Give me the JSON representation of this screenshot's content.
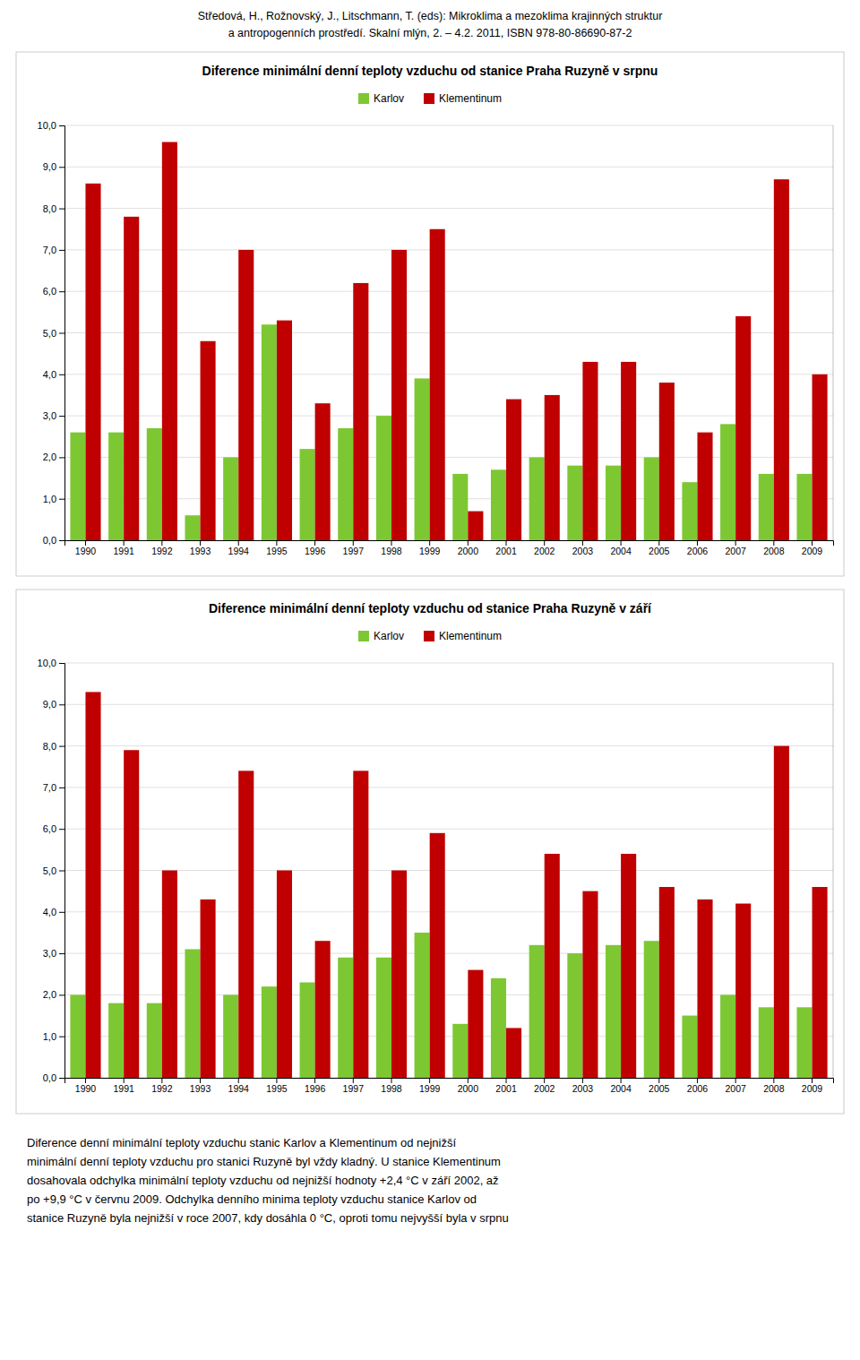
{
  "header": [
    "Středová, H., Rožnovský, J., Litschmann, T. (eds): Mikroklima a mezoklima krajinných struktur",
    "a antropogenních prostředí. Skalní mlýn, 2. – 4.2. 2011, ISBN 978-80-86690-87-2"
  ],
  "chart_data": [
    {
      "type": "bar",
      "title": "Diference minimální denní teploty vzduchu od stanice Praha Ruzyně v srpnu",
      "categories": [
        "1990",
        "1991",
        "1992",
        "1993",
        "1994",
        "1995",
        "1996",
        "1997",
        "1998",
        "1999",
        "2000",
        "2001",
        "2002",
        "2003",
        "2004",
        "2005",
        "2006",
        "2007",
        "2008",
        "2009"
      ],
      "series": [
        {
          "name": "Karlov",
          "color": "#7dc832",
          "values": [
            2.6,
            2.6,
            2.7,
            0.6,
            2.0,
            5.2,
            2.2,
            2.7,
            3.0,
            3.9,
            1.6,
            1.7,
            2.0,
            1.8,
            1.8,
            2.0,
            1.4,
            2.8,
            1.6,
            1.6
          ]
        },
        {
          "name": "Klementinum",
          "color": "#c00000",
          "values": [
            8.6,
            7.8,
            9.6,
            4.8,
            7.0,
            5.3,
            3.3,
            6.2,
            7.0,
            7.5,
            0.7,
            3.4,
            3.5,
            4.3,
            4.3,
            3.8,
            2.6,
            5.4,
            8.7,
            4.0
          ]
        }
      ],
      "ylim": [
        0.0,
        10.0
      ],
      "yticks": [
        {
          "value": 0.0,
          "label": "0,0"
        },
        {
          "value": 1.0,
          "label": "1,0"
        },
        {
          "value": 2.0,
          "label": "2,0"
        },
        {
          "value": 3.0,
          "label": "3,0"
        },
        {
          "value": 4.0,
          "label": "4,0"
        },
        {
          "value": 5.0,
          "label": "5,0"
        },
        {
          "value": 6.0,
          "label": "6,0"
        },
        {
          "value": 7.0,
          "label": "7,0"
        },
        {
          "value": 8.0,
          "label": "8,0"
        },
        {
          "value": 9.0,
          "label": "9,0"
        },
        {
          "value": 10.0,
          "label": "10,0"
        }
      ],
      "grid": true,
      "legend": "top"
    },
    {
      "type": "bar",
      "title": "Diference minimální denní teploty vzduchu od stanice Praha Ruzyně v září",
      "categories": [
        "1990",
        "1991",
        "1992",
        "1993",
        "1994",
        "1995",
        "1996",
        "1997",
        "1998",
        "1999",
        "2000",
        "2001",
        "2002",
        "2003",
        "2004",
        "2005",
        "2006",
        "2007",
        "2008",
        "2009"
      ],
      "series": [
        {
          "name": "Karlov",
          "color": "#7dc832",
          "values": [
            2.0,
            1.8,
            1.8,
            3.1,
            2.0,
            2.2,
            2.3,
            2.9,
            2.9,
            3.5,
            1.3,
            2.4,
            3.2,
            3.0,
            3.2,
            3.3,
            1.5,
            2.0,
            1.7,
            1.7
          ]
        },
        {
          "name": "Klementinum",
          "color": "#c00000",
          "values": [
            9.3,
            7.9,
            5.0,
            4.3,
            7.4,
            5.0,
            3.3,
            7.4,
            5.0,
            5.9,
            2.6,
            1.2,
            5.4,
            4.5,
            5.4,
            4.6,
            4.3,
            4.2,
            8.0,
            4.6
          ]
        }
      ],
      "ylim": [
        0.0,
        10.0
      ],
      "yticks": [
        {
          "value": 0.0,
          "label": "0,0"
        },
        {
          "value": 1.0,
          "label": "1,0"
        },
        {
          "value": 2.0,
          "label": "2,0"
        },
        {
          "value": 3.0,
          "label": "3,0"
        },
        {
          "value": 4.0,
          "label": "4,0"
        },
        {
          "value": 5.0,
          "label": "5,0"
        },
        {
          "value": 6.0,
          "label": "6,0"
        },
        {
          "value": 7.0,
          "label": "7,0"
        },
        {
          "value": 8.0,
          "label": "8,0"
        },
        {
          "value": 9.0,
          "label": "9,0"
        },
        {
          "value": 10.0,
          "label": "10,0"
        }
      ],
      "grid": true,
      "legend": "top"
    }
  ],
  "footer": [
    "Diference denní minimální teploty vzduchu stanic Karlov a Klementinum od nejnižší",
    "minimální denní teploty vzduchu pro stanici Ruzyně byl vždy kladný. U stanice Klementinum",
    "dosahovala odchylka minimální teploty vzduchu od nejnižší hodnoty +2,4 °C v září 2002, až",
    "po +9,9 °C v červnu 2009. Odchylka denního minima teploty vzduchu stanice Karlov od",
    "stanice Ruzyně byla nejnižší v roce 2007, kdy dosáhla 0 °C, oproti tomu nejvyšší byla v srpnu"
  ]
}
